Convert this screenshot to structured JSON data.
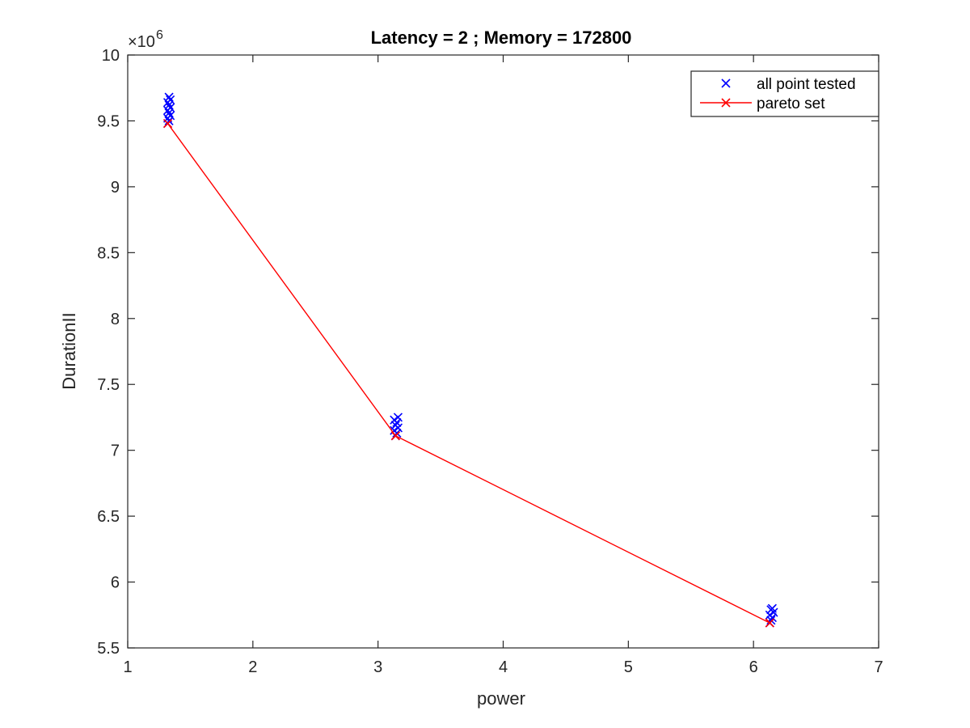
{
  "chart_data": {
    "type": "scatter",
    "title": "Latency = 2 ; Memory = 172800",
    "xlabel": "power",
    "ylabel": "DurationII",
    "xlim": [
      1,
      7
    ],
    "ylim": [
      5500000,
      10000000
    ],
    "x_ticks": [
      "1",
      "2",
      "3",
      "4",
      "5",
      "6",
      "7"
    ],
    "y_ticks": [
      "5.5",
      "6",
      "6.5",
      "7",
      "7.5",
      "8",
      "8.5",
      "9",
      "9.5",
      "10"
    ],
    "y_multiplier": {
      "base": "×10",
      "exponent": "6"
    },
    "grid": false,
    "legend_position": "top-right",
    "series": [
      {
        "name": "all point tested",
        "color": "#0000ff",
        "marker": "x",
        "line": false,
        "points": [
          [
            1.32,
            9480000
          ],
          [
            1.33,
            9500000
          ],
          [
            1.32,
            9520000
          ],
          [
            1.34,
            9540000
          ],
          [
            1.33,
            9560000
          ],
          [
            1.32,
            9580000
          ],
          [
            1.34,
            9600000
          ],
          [
            1.33,
            9620000
          ],
          [
            1.32,
            9640000
          ],
          [
            1.34,
            9660000
          ],
          [
            1.33,
            9680000
          ],
          [
            3.14,
            7110000
          ],
          [
            3.15,
            7130000
          ],
          [
            3.13,
            7150000
          ],
          [
            3.16,
            7170000
          ],
          [
            3.14,
            7190000
          ],
          [
            3.15,
            7210000
          ],
          [
            3.13,
            7230000
          ],
          [
            3.16,
            7250000
          ],
          [
            6.13,
            5690000
          ],
          [
            6.14,
            5710000
          ],
          [
            6.15,
            5730000
          ],
          [
            6.13,
            5750000
          ],
          [
            6.16,
            5770000
          ],
          [
            6.14,
            5790000
          ],
          [
            6.15,
            5800000
          ]
        ]
      },
      {
        "name": "pareto set",
        "color": "#ff0000",
        "marker": "x",
        "line": true,
        "points": [
          [
            1.32,
            9480000
          ],
          [
            3.14,
            7110000
          ],
          [
            6.13,
            5690000
          ]
        ]
      }
    ]
  }
}
